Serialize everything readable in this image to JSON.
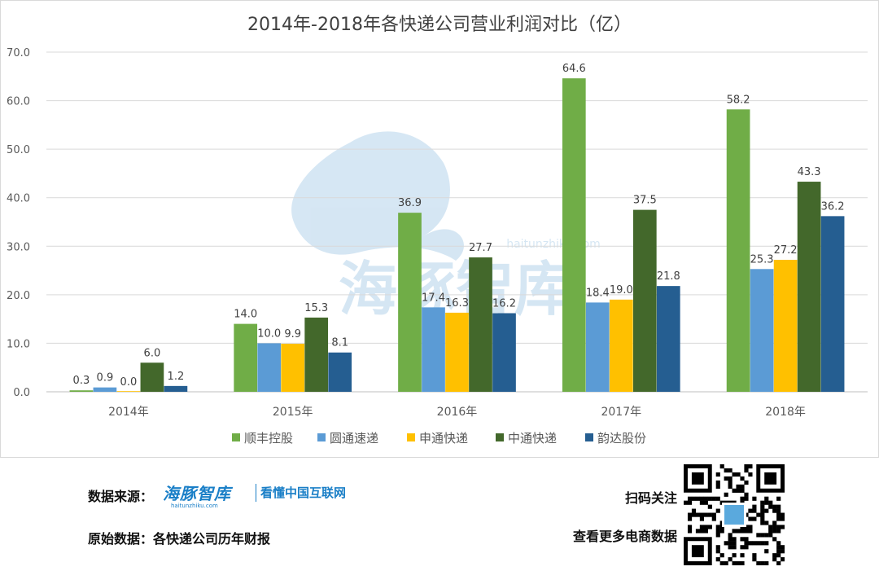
{
  "chart_data": {
    "type": "bar",
    "title": "2014年-2018年各快递公司营业利润对比（亿）",
    "categories": [
      "2014年",
      "2015年",
      "2016年",
      "2017年",
      "2018年"
    ],
    "series": [
      {
        "name": "顺丰控股",
        "color": "#70AD47",
        "values": [
          0.3,
          14.0,
          36.9,
          64.6,
          58.2
        ]
      },
      {
        "name": "圆通速递",
        "color": "#5B9BD5",
        "values": [
          0.9,
          10.0,
          17.4,
          18.4,
          25.3
        ]
      },
      {
        "name": "申通快递",
        "color": "#FFC000",
        "values": [
          0.0,
          9.9,
          16.3,
          19.0,
          27.2
        ]
      },
      {
        "name": "中通快递",
        "color": "#43682B",
        "values": [
          6.0,
          15.3,
          27.7,
          37.5,
          43.3
        ]
      },
      {
        "name": "韵达股份",
        "color": "#255E91",
        "values": [
          1.2,
          8.1,
          16.2,
          21.8,
          36.2
        ]
      }
    ],
    "ylim": [
      0,
      70
    ],
    "yticks": [
      "0.0",
      "10.0",
      "20.0",
      "30.0",
      "40.0",
      "50.0",
      "60.0",
      "70.0"
    ],
    "grid": true,
    "legend": "bottom",
    "watermark": {
      "cn": "海豚智库",
      "url": "haitunzhiku.com"
    }
  },
  "footer": {
    "source_label": "数据来源：",
    "brand": "海豚智库",
    "brand_url": "haitunzhiku.com",
    "slogan": "看懂中国互联网",
    "original_data": "原始数据：各快递公司历年财报",
    "scan": "扫码关注",
    "more": "查看更多电商数据",
    "qr_icon": "qr-code-icon"
  }
}
